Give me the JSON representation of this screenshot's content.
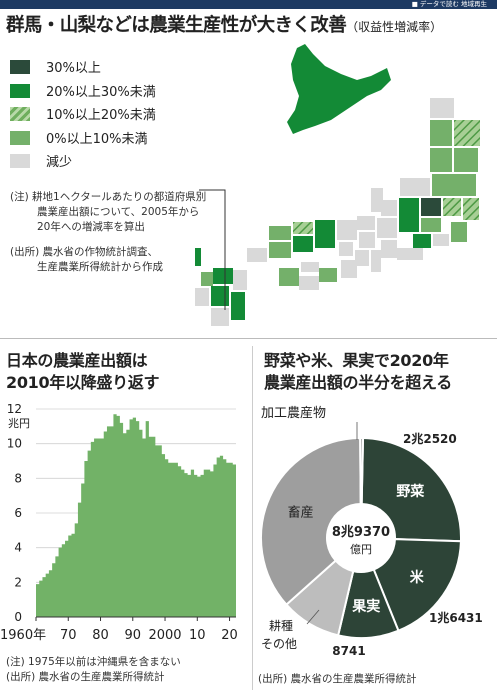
{
  "header": {
    "strip_text": "■ データで読む 地域再生"
  },
  "title": {
    "main": "群馬・山梨などは農業生産性が大きく改善",
    "sub": "（収益性増減率）"
  },
  "legend": {
    "items": [
      {
        "label": "30%以上",
        "color": "#2b4a3a",
        "pattern": "solid"
      },
      {
        "label": "20%以上30%未満",
        "color": "#138a36",
        "pattern": "solid"
      },
      {
        "label": "10%以上20%未満",
        "color": "#6fae5e",
        "pattern": "hatch"
      },
      {
        "label": "0%以上10%未満",
        "color": "#74b06a",
        "pattern": "solid"
      },
      {
        "label": "減少",
        "color": "#d9d9d9",
        "pattern": "solid"
      }
    ]
  },
  "map_notes": {
    "note": [
      "(注) 耕地1ヘクタールあたりの都道府県別",
      "農業産出額について、2005年から",
      "20年への増減率を算出"
    ],
    "source": [
      "(出所) 農水省の作物統計調査、",
      "生産農業所得統計から作成"
    ]
  },
  "left_chart": {
    "title": [
      "日本の農業産出額は",
      "2010年以降盛り返す"
    ],
    "unit": "兆円",
    "note": "(注) 1975年以前は沖縄県を含まない",
    "source": "(出所) 農水省の生産農業所得統計"
  },
  "right_chart": {
    "title": [
      "野菜や米、果実で2020年",
      "農業産出額の半分を超える"
    ],
    "total_lines": [
      "8兆9370",
      "億円"
    ],
    "source": "(出所) 農水省の生産農業所得統計"
  },
  "chart_data": [
    {
      "type": "area",
      "title": "日本の農業産出額は 2010年以降盛り返す",
      "ylabel": "兆円",
      "ylim": [
        0,
        12
      ],
      "y_ticks": [
        0,
        2,
        4,
        6,
        8,
        10,
        12
      ],
      "xlim": [
        1960,
        2022
      ],
      "x_ticks": [
        1960,
        1970,
        1980,
        1990,
        2000,
        2010,
        2020
      ],
      "x_tick_labels": [
        "1960年",
        "70",
        "80",
        "90",
        "2000",
        "10",
        "20"
      ],
      "color": "#72b267",
      "x": [
        1960,
        1961,
        1962,
        1963,
        1964,
        1965,
        1966,
        1967,
        1968,
        1969,
        1970,
        1971,
        1972,
        1973,
        1974,
        1975,
        1976,
        1977,
        1978,
        1979,
        1980,
        1981,
        1982,
        1983,
        1984,
        1985,
        1986,
        1987,
        1988,
        1989,
        1990,
        1991,
        1992,
        1993,
        1994,
        1995,
        1996,
        1997,
        1998,
        1999,
        2000,
        2001,
        2002,
        2003,
        2004,
        2005,
        2006,
        2007,
        2008,
        2009,
        2010,
        2011,
        2012,
        2013,
        2014,
        2015,
        2016,
        2017,
        2018,
        2019,
        2020,
        2021
      ],
      "values": [
        1.9,
        2.1,
        2.3,
        2.5,
        2.7,
        3.1,
        3.5,
        4.0,
        4.2,
        4.4,
        4.7,
        4.8,
        5.4,
        6.6,
        7.7,
        9.0,
        9.6,
        10.1,
        10.3,
        10.3,
        10.3,
        10.7,
        11.0,
        11.0,
        11.7,
        11.6,
        11.2,
        10.6,
        10.8,
        11.4,
        11.5,
        11.3,
        10.8,
        10.3,
        11.3,
        10.4,
        10.4,
        9.9,
        9.9,
        9.4,
        9.1,
        8.9,
        8.9,
        8.9,
        8.7,
        8.5,
        8.3,
        8.2,
        8.5,
        8.2,
        8.1,
        8.2,
        8.5,
        8.5,
        8.4,
        8.8,
        9.2,
        9.3,
        9.1,
        8.9,
        8.9,
        8.8
      ]
    },
    {
      "type": "pie",
      "title": "野菜や米、果実で2020年 農業産出額の半分を超える",
      "total_label": "8兆9370 億円",
      "unit": "億円",
      "slices": [
        {
          "label": "野菜",
          "value": 22520,
          "value_label": "2兆2520",
          "color": "#2d4437"
        },
        {
          "label": "米",
          "value": 16431,
          "value_label": "1兆6431",
          "color": "#2d4437"
        },
        {
          "label": "果実",
          "value": 8741,
          "value_label": "8741",
          "color": "#2d4437"
        },
        {
          "label": "耕種 その他",
          "value": 8700,
          "value_label": "",
          "color": "#bdbdbd"
        },
        {
          "label": "畜産",
          "value": 32600,
          "value_label": "",
          "color": "#9e9e9e"
        },
        {
          "label": "加工農産物",
          "value": 400,
          "value_label": "",
          "color": "#9e9e9e"
        }
      ]
    }
  ]
}
